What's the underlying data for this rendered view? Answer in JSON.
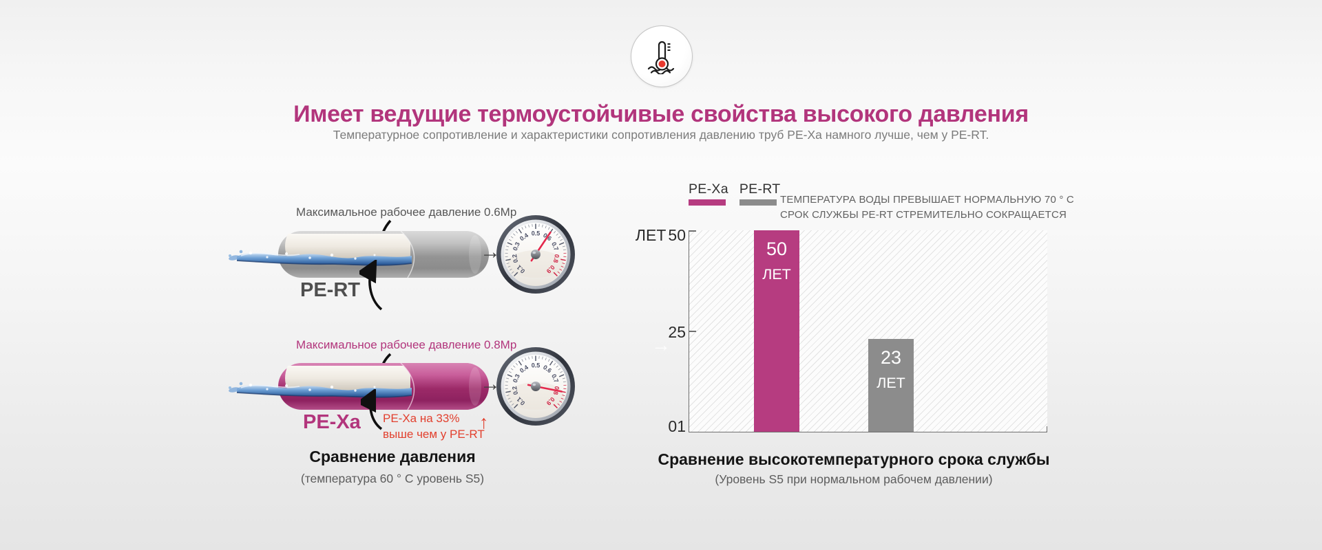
{
  "page": {
    "title": "Имеет ведущие термоустойчивые свойства высокого давления",
    "subtitle": "Температурное сопротивление и характеристики сопротивления давлению труб PE-Xa намного лучше, чем у PE-RT.",
    "accent_color": "#b2357c"
  },
  "icon": {
    "name": "thermometer-icon"
  },
  "pressure": {
    "items": [
      {
        "pipe_label": "PE-RT",
        "pressure_label": "Максимальное рабочее давление 0.6Мр",
        "gauge_value": 0.6,
        "pipe_color": "#9a9a9a"
      },
      {
        "pipe_label": "PE-Xa",
        "pressure_label": "Максимальное рабочее давление 0.8Мр",
        "gauge_value": 0.8,
        "pipe_color": "#9c2a68"
      }
    ],
    "gauge_scale": [
      "0.1",
      "0.2",
      "0.3",
      "0.4",
      "0.5",
      "0.6",
      "0.7",
      "0.8",
      "0.9"
    ],
    "flow_arrow": "→",
    "note_line1": "PE-Xa на 33%",
    "note_line2": "выше чем у PE-RT",
    "note_arrow": "↑",
    "note_color": "#e2402e",
    "caption": "Сравнение давления",
    "subcaption": "(температура 60 ° C уровень S5)"
  },
  "chart_data": {
    "type": "bar",
    "title": "Сравнение высокотемпературного срока службы",
    "subtitle": "(Уровень S5 при нормальном рабочем давлении)",
    "categories": [
      "PE-Xa",
      "PE-RT"
    ],
    "values": [
      50,
      23
    ],
    "bar_labels": [
      [
        "50",
        "ЛЕТ"
      ],
      [
        "23",
        "ЛЕТ"
      ]
    ],
    "bar_colors": [
      "#b63c80",
      "#8c8c8c"
    ],
    "ylabel": "ЛЕТ",
    "yticks": [
      "50",
      "25",
      "01"
    ],
    "ylim": [
      0,
      50
    ],
    "grid": "diagonal-hatch",
    "legend_position": "top-left",
    "legend": [
      {
        "label": "PE-Xa",
        "color": "#b63c80"
      },
      {
        "label": "PE-RT",
        "color": "#8c8c8c"
      }
    ],
    "annotation_line1": "ТЕМПЕРАТУРА ВОДЫ ПРЕВЫШАЕТ НОРМАЛЬНУЮ 70 ° C",
    "annotation_line2": "СРОК СЛУЖБЫ PE-RT СТРЕМИТЕЛЬНО СОКРАЩАЕТСЯ"
  },
  "decor": {
    "white_arrow": "→"
  }
}
